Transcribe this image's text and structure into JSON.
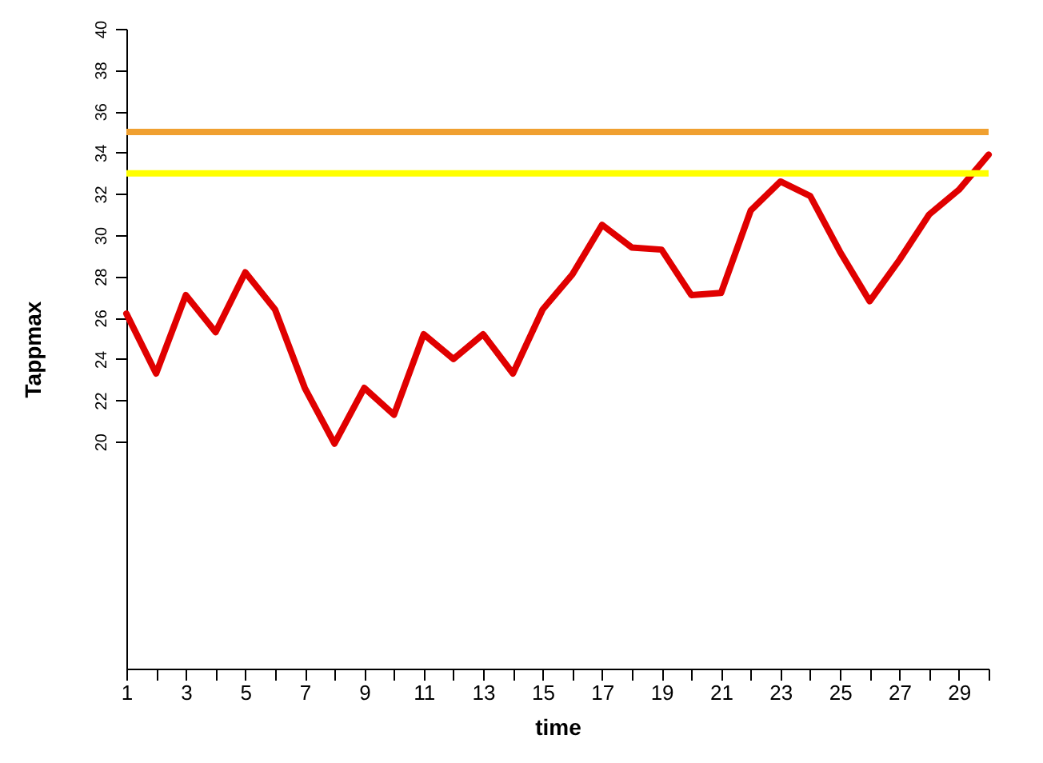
{
  "chart_data": {
    "type": "line",
    "xlabel": "time",
    "ylabel": "Tappmax",
    "x": [
      1,
      2,
      3,
      4,
      5,
      6,
      7,
      8,
      9,
      10,
      11,
      12,
      13,
      14,
      15,
      16,
      17,
      18,
      19,
      20,
      21,
      22,
      23,
      24,
      25,
      26,
      27,
      28,
      29,
      30
    ],
    "series": [
      {
        "color": "#e00000",
        "values": [
          26.2,
          23.3,
          27.1,
          25.3,
          28.2,
          26.4,
          22.6,
          19.9,
          22.6,
          21.3,
          25.2,
          24.0,
          25.2,
          23.3,
          26.4,
          28.1,
          30.5,
          29.4,
          29.3,
          27.1,
          27.2,
          31.2,
          32.6,
          31.9,
          29.2,
          26.8,
          28.8,
          31.0,
          32.2,
          33.9
        ]
      }
    ],
    "xlim": [
      1,
      30
    ],
    "xticks": [
      1,
      {
        "value": 2,
        "label": null
      },
      3,
      {
        "value": 4,
        "label": null
      },
      5,
      {
        "value": 6,
        "label": null
      },
      7,
      {
        "value": 8,
        "label": null
      },
      9,
      {
        "value": 10,
        "label": null
      },
      11,
      {
        "value": 12,
        "label": null
      },
      13,
      {
        "value": 14,
        "label": null
      },
      15,
      {
        "value": 16,
        "label": null
      },
      17,
      {
        "value": 18,
        "label": null
      },
      19,
      {
        "value": 20,
        "label": null
      },
      21,
      {
        "value": 22,
        "label": null
      },
      23,
      {
        "value": 24,
        "label": null
      },
      25,
      {
        "value": 26,
        "label": null
      },
      27,
      {
        "value": 28,
        "label": null
      },
      29,
      {
        "value": 30,
        "label": null
      }
    ],
    "ylim": [
      9,
      40
    ],
    "yticks": [
      20,
      22,
      24,
      26,
      28,
      30,
      32,
      34,
      36,
      38,
      40
    ],
    "ref_lines": [
      {
        "axis": "y",
        "value": 35,
        "color": "#f0a030"
      },
      {
        "axis": "y",
        "value": 33,
        "color": "#ffff00"
      }
    ],
    "grid": false,
    "marker": "none",
    "line_style": "solid"
  }
}
